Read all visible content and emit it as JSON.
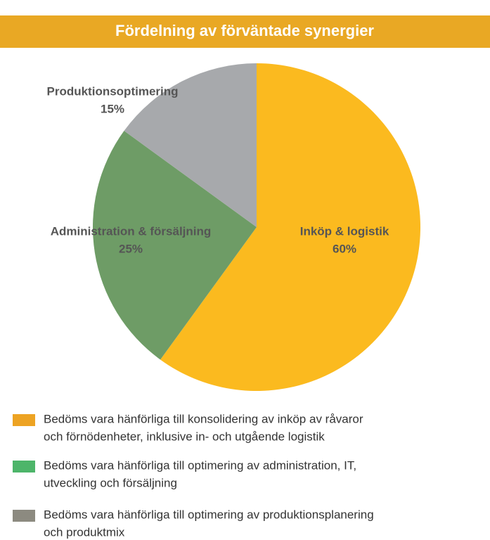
{
  "chart_data": {
    "type": "pie",
    "title": "Fördelning av förväntade synergier",
    "categories": [
      "Inköp & logistik",
      "Administration & försäljning",
      "Produktionsoptimering"
    ],
    "values": [
      60,
      25,
      15
    ],
    "value_labels": [
      "60%",
      "25%",
      "15%"
    ],
    "colors": [
      "#fbba1f",
      "#6e9c66",
      "#a7a9ac"
    ],
    "legend": [
      {
        "color": "#eda323",
        "lines": [
          "Bedöms vara hänförliga till konsolidering av inköp av råvaror",
          "och förnödenheter, inklusive in- och utgående logistik"
        ]
      },
      {
        "color": "#4db56a",
        "lines": [
          "Bedöms vara hänförliga till optimering av administration, IT,",
          "utveckling och försäljning"
        ]
      },
      {
        "color": "#8c8a80",
        "lines": [
          "Bedöms vara hänförliga till optimering av produktionsplanering",
          "och produktmix"
        ]
      }
    ]
  }
}
